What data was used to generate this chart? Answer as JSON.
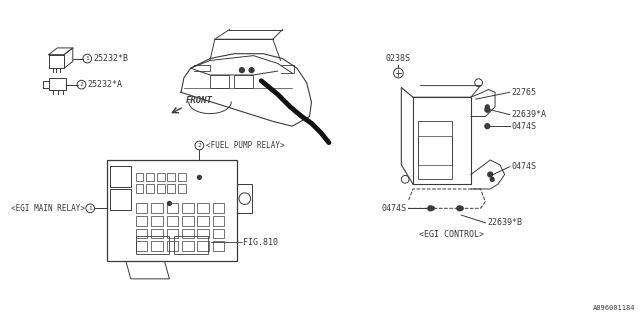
{
  "bg_color": "#ffffff",
  "line_color": "#3a3a3a",
  "part_labels": {
    "25232B": "25232*B",
    "25232A": "25232*A",
    "0238S": "0238S",
    "22765": "22765",
    "22639A": "22639*A",
    "0474S_1": "0474S",
    "0474S_2": "0474S",
    "0474S_3": "0474S",
    "22639B": "22639*B",
    "fig810": "FIG.810"
  },
  "section_labels": {
    "egi_main": "<EGI MAIN RELAY>",
    "fuel_pump": "<FUEL PUMP RELAY>",
    "egi_control": "<EGI CONTROL>",
    "front": "FRONT"
  },
  "watermark": "A096001184",
  "font_size": 6.0
}
